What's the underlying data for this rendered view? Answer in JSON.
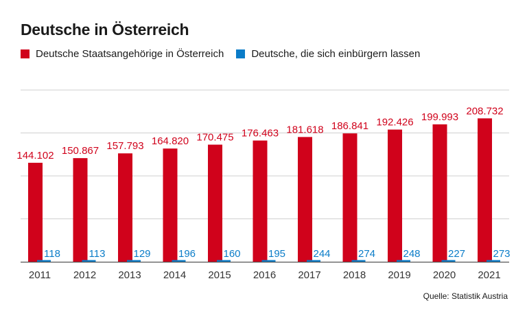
{
  "title": "Deutsche in Österreich",
  "source": "Quelle: Statistik Austria",
  "colors": {
    "primary": "#d0021b",
    "secondary": "#0a7cc8",
    "grid": "#cfcfcf"
  },
  "chart_data": {
    "type": "bar",
    "title": "Deutsche in Österreich",
    "xlabel": "",
    "ylabel": "",
    "ylim": [
      0,
      250000
    ],
    "grid": true,
    "legend_position": "top-left",
    "categories": [
      "2011",
      "2012",
      "2013",
      "2014",
      "2015",
      "2016",
      "2017",
      "2018",
      "2019",
      "2020",
      "2021"
    ],
    "series": [
      {
        "name": "Deutsche Staatsangehörige in Österreich",
        "color": "#d0021b",
        "values": [
          144102,
          150867,
          157793,
          164820,
          170475,
          176463,
          181618,
          186841,
          192426,
          199993,
          208732
        ],
        "labels": [
          "144.102",
          "150.867",
          "157.793",
          "164.820",
          "170.475",
          "176.463",
          "181.618",
          "186.841",
          "192.426",
          "199.993",
          "208.732"
        ]
      },
      {
        "name": "Deutsche, die sich einbürgern lassen",
        "color": "#0a7cc8",
        "values": [
          118,
          113,
          129,
          196,
          160,
          195,
          244,
          274,
          248,
          227,
          273
        ],
        "labels": [
          "118",
          "113",
          "129",
          "196",
          "160",
          "195",
          "244",
          "274",
          "248",
          "227",
          "273"
        ]
      }
    ]
  }
}
